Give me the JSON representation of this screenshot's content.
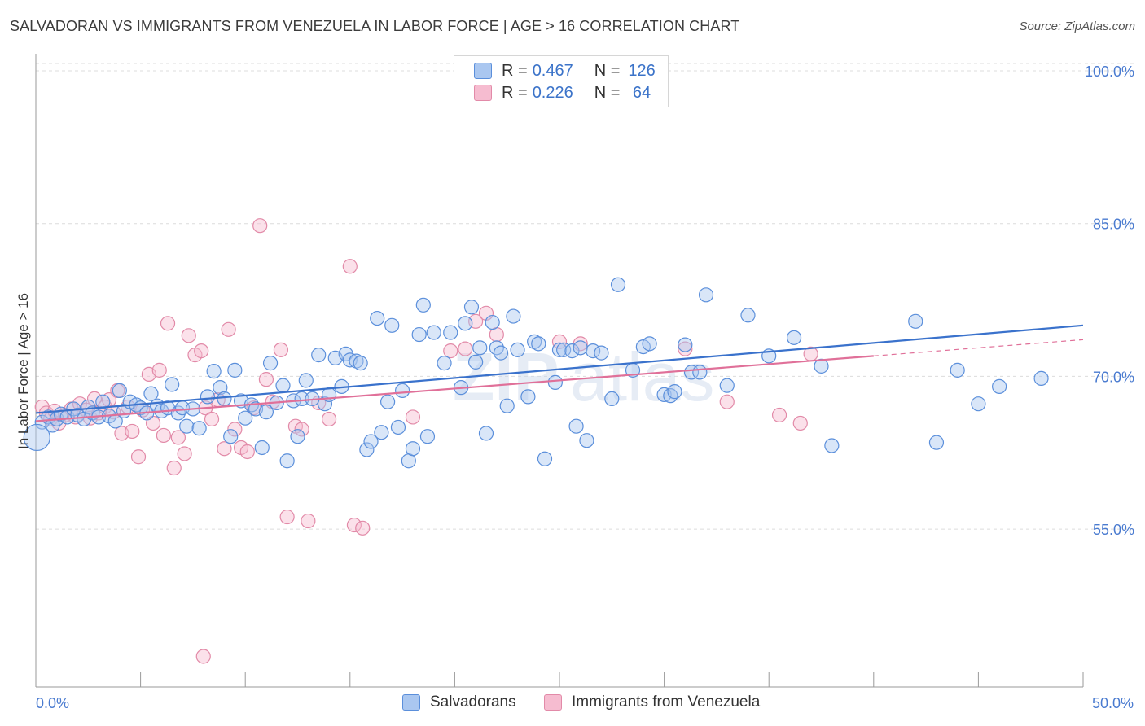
{
  "title": "SALVADORAN VS IMMIGRANTS FROM VENEZUELA IN LABOR FORCE | AGE > 16 CORRELATION CHART",
  "source": "Source: ZipAtlas.com",
  "watermark": {
    "zip": "ZIP",
    "atlas": "atlas"
  },
  "colors": {
    "blue_fill": "#aac7f0",
    "blue_stroke": "#5b8fdb",
    "blue_line": "#3a72cc",
    "pink_fill": "#f6bcd0",
    "pink_stroke": "#e28aa8",
    "pink_line": "#e07099",
    "grid": "#dcdcdc",
    "axis": "#9a9a9a"
  },
  "legend": {
    "row1": {
      "r_label": "R = ",
      "r_value": "0.467",
      "n_label": "N = ",
      "n_value": "126"
    },
    "row2": {
      "r_label": "R = ",
      "r_value": "0.226",
      "n_label": "N = ",
      "n_value": " 64"
    }
  },
  "series_legend": {
    "s1": "Salvadorans",
    "s2": "Immigrants from Venezuela"
  },
  "chart_data": {
    "type": "scatter",
    "title": "SALVADORAN VS IMMIGRANTS FROM VENEZUELA IN LABOR FORCE | AGE > 16 CORRELATION CHART",
    "xlabel": "",
    "ylabel": "In Labor Force | Age > 16",
    "xlim": [
      0,
      50
    ],
    "ylim": [
      39.5,
      102
    ],
    "x_tick_labels": [
      "0.0%",
      "50.0%"
    ],
    "y_ticks": [
      55,
      70,
      85,
      100
    ],
    "y_tick_labels": [
      "55.0%",
      "70.0%",
      "85.0%",
      "100.0%"
    ],
    "grid": true,
    "legend_position": "top-center",
    "series": [
      {
        "name": "Salvadorans",
        "r": 0.467,
        "n": 126,
        "trend": {
          "x": [
            0,
            50
          ],
          "y": [
            66.4,
            75.0
          ]
        },
        "points": [
          [
            0.3,
            65.5
          ],
          [
            0.6,
            66.0
          ],
          [
            0.8,
            65.2
          ],
          [
            1.0,
            65.8
          ],
          [
            1.2,
            66.3
          ],
          [
            1.5,
            66.0
          ],
          [
            1.8,
            66.8
          ],
          [
            2.0,
            66.2
          ],
          [
            2.3,
            65.8
          ],
          [
            2.5,
            67.0
          ],
          [
            2.7,
            66.4
          ],
          [
            3.0,
            66.0
          ],
          [
            3.2,
            67.5
          ],
          [
            3.5,
            66.1
          ],
          [
            3.8,
            65.6
          ],
          [
            4.0,
            68.6
          ],
          [
            4.2,
            66.6
          ],
          [
            4.5,
            67.5
          ],
          [
            4.8,
            67.2
          ],
          [
            5.0,
            66.9
          ],
          [
            5.3,
            66.4
          ],
          [
            5.5,
            68.3
          ],
          [
            5.8,
            67.1
          ],
          [
            6.0,
            66.6
          ],
          [
            6.3,
            66.9
          ],
          [
            6.5,
            69.2
          ],
          [
            6.8,
            66.4
          ],
          [
            7.0,
            66.9
          ],
          [
            7.2,
            65.1
          ],
          [
            7.5,
            66.8
          ],
          [
            7.8,
            64.9
          ],
          [
            8.2,
            68.0
          ],
          [
            8.5,
            70.5
          ],
          [
            8.8,
            68.9
          ],
          [
            9.0,
            67.8
          ],
          [
            9.3,
            64.1
          ],
          [
            9.5,
            70.6
          ],
          [
            9.8,
            67.6
          ],
          [
            10.0,
            65.9
          ],
          [
            10.3,
            67.2
          ],
          [
            10.5,
            66.8
          ],
          [
            10.8,
            63.0
          ],
          [
            11.0,
            66.5
          ],
          [
            11.2,
            71.3
          ],
          [
            11.5,
            67.4
          ],
          [
            11.8,
            69.1
          ],
          [
            12.0,
            61.7
          ],
          [
            12.3,
            67.6
          ],
          [
            12.5,
            64.1
          ],
          [
            12.7,
            67.8
          ],
          [
            12.9,
            69.6
          ],
          [
            13.2,
            67.8
          ],
          [
            13.5,
            72.1
          ],
          [
            13.8,
            67.3
          ],
          [
            14.0,
            68.2
          ],
          [
            14.3,
            71.8
          ],
          [
            14.6,
            69.0
          ],
          [
            14.8,
            72.2
          ],
          [
            15.0,
            71.6
          ],
          [
            15.3,
            71.5
          ],
          [
            15.5,
            71.3
          ],
          [
            15.8,
            62.8
          ],
          [
            16.0,
            63.6
          ],
          [
            16.3,
            75.7
          ],
          [
            16.5,
            64.5
          ],
          [
            16.8,
            67.5
          ],
          [
            17.0,
            75.0
          ],
          [
            17.3,
            65.0
          ],
          [
            17.5,
            68.6
          ],
          [
            17.8,
            61.7
          ],
          [
            18.0,
            62.9
          ],
          [
            18.3,
            74.1
          ],
          [
            18.5,
            77.0
          ],
          [
            18.7,
            64.1
          ],
          [
            19.0,
            74.3
          ],
          [
            19.5,
            71.3
          ],
          [
            19.8,
            74.3
          ],
          [
            20.3,
            68.9
          ],
          [
            20.5,
            75.2
          ],
          [
            20.8,
            76.8
          ],
          [
            21.0,
            71.4
          ],
          [
            21.2,
            72.8
          ],
          [
            21.5,
            64.4
          ],
          [
            21.8,
            75.3
          ],
          [
            22.0,
            72.8
          ],
          [
            22.2,
            72.3
          ],
          [
            22.5,
            67.1
          ],
          [
            22.8,
            75.9
          ],
          [
            23.0,
            72.6
          ],
          [
            23.5,
            68.0
          ],
          [
            23.8,
            73.4
          ],
          [
            24.0,
            73.2
          ],
          [
            24.3,
            61.9
          ],
          [
            24.8,
            69.4
          ],
          [
            25.0,
            72.6
          ],
          [
            25.2,
            72.6
          ],
          [
            25.6,
            72.5
          ],
          [
            25.8,
            65.1
          ],
          [
            26.0,
            72.8
          ],
          [
            26.3,
            63.7
          ],
          [
            26.6,
            72.5
          ],
          [
            27.0,
            72.3
          ],
          [
            27.5,
            67.8
          ],
          [
            27.8,
            79.0
          ],
          [
            28.5,
            70.6
          ],
          [
            29.0,
            72.9
          ],
          [
            29.3,
            73.2
          ],
          [
            30.0,
            68.2
          ],
          [
            30.3,
            68.1
          ],
          [
            30.5,
            68.5
          ],
          [
            31.0,
            73.1
          ],
          [
            31.3,
            70.4
          ],
          [
            31.7,
            70.4
          ],
          [
            32.0,
            78.0
          ],
          [
            33.0,
            69.1
          ],
          [
            34.0,
            76.0
          ],
          [
            35.0,
            72.0
          ],
          [
            36.2,
            73.8
          ],
          [
            37.5,
            71.0
          ],
          [
            38.0,
            63.2
          ],
          [
            42.0,
            75.4
          ],
          [
            43.0,
            63.5
          ],
          [
            44.0,
            70.6
          ],
          [
            45.0,
            67.3
          ],
          [
            46.0,
            69.0
          ],
          [
            48.0,
            69.8
          ]
        ]
      },
      {
        "name": "Immigrants from Venezuela",
        "r": 0.226,
        "n": 64,
        "trend": {
          "x": [
            0,
            40
          ],
          "y": [
            65.6,
            72.0
          ]
        },
        "trend_extension": {
          "x": [
            40,
            50
          ],
          "y": [
            72.0,
            73.6
          ]
        },
        "points": [
          [
            0.3,
            67.0
          ],
          [
            0.5,
            66.4
          ],
          [
            0.7,
            65.8
          ],
          [
            0.9,
            66.6
          ],
          [
            1.1,
            65.4
          ],
          [
            1.4,
            66.2
          ],
          [
            1.7,
            66.8
          ],
          [
            1.9,
            66.0
          ],
          [
            2.1,
            67.3
          ],
          [
            2.4,
            66.7
          ],
          [
            2.6,
            65.9
          ],
          [
            2.8,
            67.8
          ],
          [
            3.0,
            66.4
          ],
          [
            3.3,
            67.0
          ],
          [
            3.5,
            67.7
          ],
          [
            3.7,
            66.5
          ],
          [
            3.9,
            68.6
          ],
          [
            4.1,
            64.4
          ],
          [
            4.4,
            67.0
          ],
          [
            4.6,
            64.6
          ],
          [
            4.9,
            62.1
          ],
          [
            5.1,
            66.7
          ],
          [
            5.4,
            70.2
          ],
          [
            5.6,
            65.4
          ],
          [
            5.9,
            70.6
          ],
          [
            6.1,
            64.2
          ],
          [
            6.3,
            75.2
          ],
          [
            6.6,
            61.0
          ],
          [
            6.8,
            64.0
          ],
          [
            7.1,
            62.4
          ],
          [
            7.3,
            74.0
          ],
          [
            7.6,
            72.1
          ],
          [
            7.9,
            72.5
          ],
          [
            8.1,
            66.9
          ],
          [
            8.4,
            65.8
          ],
          [
            8.7,
            67.7
          ],
          [
            9.0,
            62.9
          ],
          [
            9.2,
            74.6
          ],
          [
            9.5,
            64.8
          ],
          [
            9.8,
            63.0
          ],
          [
            10.1,
            62.6
          ],
          [
            10.4,
            66.9
          ],
          [
            10.7,
            84.8
          ],
          [
            11.0,
            69.7
          ],
          [
            11.3,
            67.5
          ],
          [
            11.7,
            72.6
          ],
          [
            12.0,
            56.2
          ],
          [
            12.4,
            65.1
          ],
          [
            12.7,
            64.8
          ],
          [
            13.0,
            55.8
          ],
          [
            13.5,
            67.4
          ],
          [
            14.0,
            65.8
          ],
          [
            15.0,
            80.8
          ],
          [
            19.8,
            72.5
          ],
          [
            21.0,
            75.4
          ],
          [
            21.5,
            76.2
          ],
          [
            22.0,
            74.1
          ],
          [
            25.0,
            73.4
          ],
          [
            26.0,
            73.2
          ],
          [
            31.0,
            72.7
          ],
          [
            33.0,
            67.5
          ],
          [
            35.5,
            66.2
          ],
          [
            36.5,
            65.4
          ],
          [
            37.0,
            72.2
          ]
        ]
      }
    ],
    "extra_points_pink": [
      [
        8.0,
        42.5
      ],
      [
        15.2,
        55.4
      ],
      [
        15.6,
        55.1
      ],
      [
        18.0,
        66.0
      ],
      [
        20.5,
        72.7
      ]
    ]
  }
}
